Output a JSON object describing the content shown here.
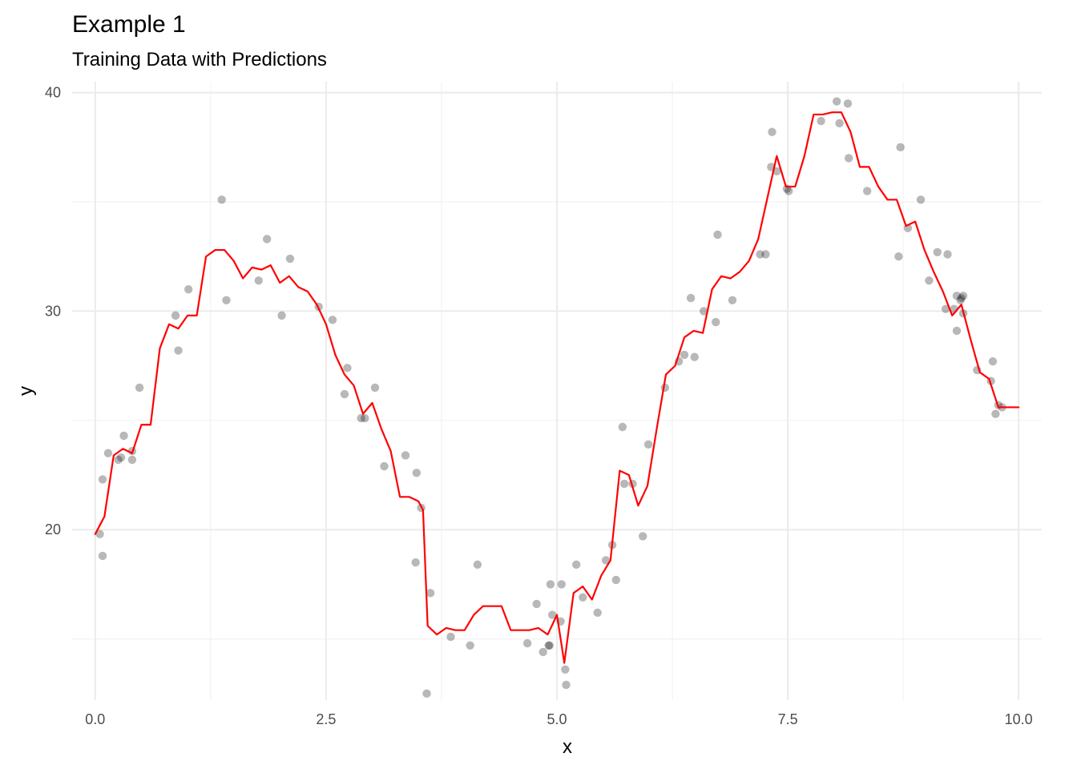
{
  "chart_data": {
    "type": "scatter",
    "title": "Example 1",
    "subtitle": "Training Data with Predictions",
    "xlabel": "x",
    "ylabel": "y",
    "xlim": [
      -0.25,
      10.25
    ],
    "ylim": [
      12.2,
      40.5
    ],
    "x_ticks": [
      0,
      2.5,
      5,
      7.5,
      10
    ],
    "x_tick_labels": [
      "0.0",
      "2.5",
      "5.0",
      "7.5",
      "10.0"
    ],
    "y_ticks": [
      20,
      30,
      40
    ],
    "y_tick_labels": [
      "20",
      "30",
      "40"
    ],
    "x_minor_ticks": [
      1.25,
      3.75,
      6.25,
      8.75
    ],
    "y_minor_ticks": [
      15,
      25,
      35
    ],
    "grid": true,
    "legend": "none",
    "colors": {
      "points": "#000000",
      "line": "#ff0000",
      "grid": "#ebebeb",
      "ticks": "#4d4d4d"
    },
    "series": [
      {
        "type": "scatter",
        "points": [
          [
            0.05,
            19.8
          ],
          [
            0.08,
            22.3
          ],
          [
            0.08,
            18.8
          ],
          [
            0.14,
            23.5
          ],
          [
            0.25,
            23.2
          ],
          [
            0.28,
            23.3
          ],
          [
            0.31,
            24.3
          ],
          [
            0.4,
            23.6
          ],
          [
            0.4,
            23.2
          ],
          [
            0.48,
            26.5
          ],
          [
            0.87,
            29.8
          ],
          [
            0.9,
            28.2
          ],
          [
            1.01,
            31.0
          ],
          [
            1.37,
            35.1
          ],
          [
            1.42,
            30.5
          ],
          [
            1.77,
            31.4
          ],
          [
            1.86,
            33.3
          ],
          [
            2.02,
            29.8
          ],
          [
            2.11,
            32.4
          ],
          [
            2.42,
            30.2
          ],
          [
            2.57,
            29.6
          ],
          [
            2.7,
            26.2
          ],
          [
            2.73,
            27.4
          ],
          [
            2.88,
            25.1
          ],
          [
            2.92,
            25.1
          ],
          [
            3.03,
            26.5
          ],
          [
            3.13,
            22.9
          ],
          [
            3.36,
            23.4
          ],
          [
            3.47,
            18.5
          ],
          [
            3.48,
            22.6
          ],
          [
            3.53,
            21.0
          ],
          [
            3.59,
            12.5
          ],
          [
            3.63,
            17.1
          ],
          [
            3.85,
            15.1
          ],
          [
            4.06,
            14.7
          ],
          [
            4.14,
            18.4
          ],
          [
            4.68,
            14.8
          ],
          [
            4.78,
            16.6
          ],
          [
            4.85,
            14.4
          ],
          [
            4.91,
            14.7
          ],
          [
            4.92,
            14.7
          ],
          [
            4.93,
            17.5
          ],
          [
            4.95,
            16.1
          ],
          [
            5.04,
            15.8
          ],
          [
            5.05,
            17.5
          ],
          [
            5.09,
            13.6
          ],
          [
            5.1,
            12.9
          ],
          [
            5.21,
            18.4
          ],
          [
            5.28,
            16.9
          ],
          [
            5.44,
            16.2
          ],
          [
            5.53,
            18.6
          ],
          [
            5.6,
            19.3
          ],
          [
            5.64,
            17.7
          ],
          [
            5.71,
            24.7
          ],
          [
            5.73,
            22.1
          ],
          [
            5.82,
            22.1
          ],
          [
            5.93,
            19.7
          ],
          [
            5.99,
            23.9
          ],
          [
            6.17,
            26.5
          ],
          [
            6.32,
            27.7
          ],
          [
            6.38,
            28.0
          ],
          [
            6.45,
            30.6
          ],
          [
            6.49,
            27.9
          ],
          [
            6.59,
            30.0
          ],
          [
            6.72,
            29.5
          ],
          [
            6.74,
            33.5
          ],
          [
            6.9,
            30.5
          ],
          [
            7.2,
            32.6
          ],
          [
            7.26,
            32.6
          ],
          [
            7.32,
            36.6
          ],
          [
            7.33,
            38.2
          ],
          [
            7.38,
            36.4
          ],
          [
            7.49,
            35.6
          ],
          [
            7.51,
            35.5
          ],
          [
            7.86,
            38.7
          ],
          [
            8.03,
            39.6
          ],
          [
            8.06,
            38.6
          ],
          [
            8.15,
            39.5
          ],
          [
            8.16,
            37.0
          ],
          [
            8.36,
            35.5
          ],
          [
            8.7,
            32.5
          ],
          [
            8.72,
            37.5
          ],
          [
            8.8,
            33.8
          ],
          [
            8.94,
            35.1
          ],
          [
            9.03,
            31.4
          ],
          [
            9.12,
            32.7
          ],
          [
            9.21,
            30.1
          ],
          [
            9.23,
            32.6
          ],
          [
            9.3,
            30.1
          ],
          [
            9.33,
            29.1
          ],
          [
            9.33,
            30.7
          ],
          [
            9.37,
            30.5
          ],
          [
            9.38,
            30.6
          ],
          [
            9.4,
            30.7
          ],
          [
            9.4,
            29.9
          ],
          [
            9.55,
            27.3
          ],
          [
            9.7,
            26.8
          ],
          [
            9.72,
            27.7
          ],
          [
            9.75,
            25.3
          ],
          [
            9.78,
            25.7
          ],
          [
            9.82,
            25.6
          ]
        ]
      },
      {
        "type": "line",
        "points": [
          [
            0.0,
            19.8
          ],
          [
            0.1,
            20.6
          ],
          [
            0.2,
            23.4
          ],
          [
            0.3,
            23.7
          ],
          [
            0.4,
            23.5
          ],
          [
            0.5,
            24.8
          ],
          [
            0.6,
            24.8
          ],
          [
            0.7,
            28.3
          ],
          [
            0.8,
            29.4
          ],
          [
            0.9,
            29.2
          ],
          [
            1.0,
            29.8
          ],
          [
            1.1,
            29.8
          ],
          [
            1.2,
            32.5
          ],
          [
            1.3,
            32.8
          ],
          [
            1.4,
            32.8
          ],
          [
            1.5,
            32.3
          ],
          [
            1.6,
            31.5
          ],
          [
            1.7,
            32.0
          ],
          [
            1.8,
            31.9
          ],
          [
            1.9,
            32.1
          ],
          [
            2.0,
            31.3
          ],
          [
            2.1,
            31.6
          ],
          [
            2.2,
            31.1
          ],
          [
            2.3,
            30.9
          ],
          [
            2.4,
            30.3
          ],
          [
            2.5,
            29.4
          ],
          [
            2.6,
            28.0
          ],
          [
            2.7,
            27.1
          ],
          [
            2.8,
            26.6
          ],
          [
            2.9,
            25.3
          ],
          [
            3.0,
            25.8
          ],
          [
            3.1,
            24.6
          ],
          [
            3.2,
            23.6
          ],
          [
            3.3,
            21.5
          ],
          [
            3.4,
            21.5
          ],
          [
            3.5,
            21.3
          ],
          [
            3.55,
            20.9
          ],
          [
            3.6,
            15.6
          ],
          [
            3.7,
            15.2
          ],
          [
            3.8,
            15.5
          ],
          [
            3.9,
            15.4
          ],
          [
            4.0,
            15.4
          ],
          [
            4.1,
            16.1
          ],
          [
            4.2,
            16.5
          ],
          [
            4.3,
            16.5
          ],
          [
            4.4,
            16.5
          ],
          [
            4.5,
            15.4
          ],
          [
            4.6,
            15.4
          ],
          [
            4.7,
            15.4
          ],
          [
            4.8,
            15.5
          ],
          [
            4.9,
            15.2
          ],
          [
            5.0,
            16.1
          ],
          [
            5.08,
            13.9
          ],
          [
            5.18,
            17.1
          ],
          [
            5.28,
            17.4
          ],
          [
            5.38,
            16.8
          ],
          [
            5.48,
            17.9
          ],
          [
            5.58,
            18.6
          ],
          [
            5.68,
            22.7
          ],
          [
            5.78,
            22.5
          ],
          [
            5.88,
            21.1
          ],
          [
            5.98,
            22.0
          ],
          [
            6.08,
            24.6
          ],
          [
            6.18,
            27.1
          ],
          [
            6.28,
            27.5
          ],
          [
            6.38,
            28.8
          ],
          [
            6.48,
            29.1
          ],
          [
            6.58,
            29.0
          ],
          [
            6.68,
            31.0
          ],
          [
            6.78,
            31.6
          ],
          [
            6.88,
            31.5
          ],
          [
            6.98,
            31.8
          ],
          [
            7.08,
            32.3
          ],
          [
            7.18,
            33.3
          ],
          [
            7.28,
            35.2
          ],
          [
            7.38,
            37.1
          ],
          [
            7.48,
            35.7
          ],
          [
            7.58,
            35.7
          ],
          [
            7.68,
            37.1
          ],
          [
            7.78,
            39.0
          ],
          [
            7.88,
            39.0
          ],
          [
            7.98,
            39.1
          ],
          [
            8.08,
            39.1
          ],
          [
            8.18,
            38.2
          ],
          [
            8.28,
            36.6
          ],
          [
            8.38,
            36.6
          ],
          [
            8.48,
            35.7
          ],
          [
            8.58,
            35.1
          ],
          [
            8.68,
            35.1
          ],
          [
            8.78,
            33.9
          ],
          [
            8.88,
            34.1
          ],
          [
            8.98,
            32.8
          ],
          [
            9.08,
            31.8
          ],
          [
            9.18,
            30.9
          ],
          [
            9.28,
            29.8
          ],
          [
            9.38,
            30.3
          ],
          [
            9.48,
            28.7
          ],
          [
            9.58,
            27.2
          ],
          [
            9.68,
            26.9
          ],
          [
            9.78,
            25.6
          ],
          [
            9.88,
            25.6
          ],
          [
            10.0,
            25.6
          ]
        ]
      }
    ]
  }
}
